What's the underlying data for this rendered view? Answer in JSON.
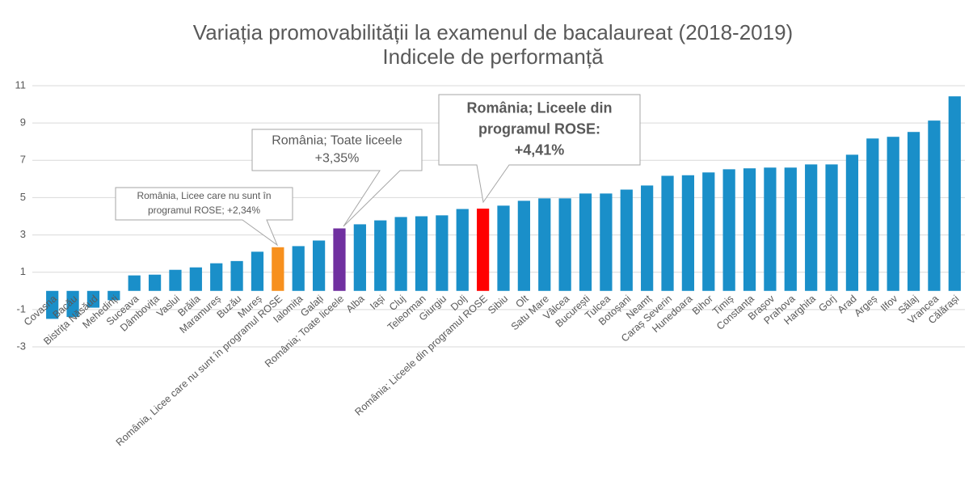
{
  "chart_data": {
    "type": "bar",
    "title": "Variația promovabilității la examenul de bacalaureat (2018-2019)",
    "subtitle": "Indicele de performanță",
    "categories": [
      "Covasna",
      "Bacău",
      "Bistrița Năsăud",
      "Mehedinți",
      "Suceava",
      "Dâmbovița",
      "Vaslui",
      "Brăila",
      "Maramureș",
      "Buzău",
      "Mureș",
      "România, Licee care nu sunt în programul ROSE",
      "Ialomița",
      "Galați",
      "România; Toate liceele",
      "Alba",
      "Iași",
      "Cluj",
      "Teleorman",
      "Giurgiu",
      "Dolj",
      "România; Liceele din programul ROSE",
      "Sibiu",
      "Olt",
      "Satu Mare",
      "Vâlcea",
      "București",
      "Tulcea",
      "Botoșani",
      "Neamț",
      "Caraș Severin",
      "Hunedoara",
      "Bihor",
      "Timiș",
      "Constanța",
      "Brașov",
      "Prahova",
      "Harghita",
      "Gorj",
      "Arad",
      "Argeș",
      "Ilfov",
      "Sălaj",
      "Vrancea",
      "Călărași"
    ],
    "values": [
      -1.5,
      -1.4,
      -0.9,
      -0.5,
      0.83,
      0.87,
      1.13,
      1.26,
      1.48,
      1.6,
      2.1,
      2.34,
      2.4,
      2.7,
      3.35,
      3.57,
      3.78,
      3.96,
      4.0,
      4.05,
      4.39,
      4.41,
      4.57,
      4.83,
      4.96,
      4.96,
      5.22,
      5.22,
      5.43,
      5.65,
      6.17,
      6.2,
      6.35,
      6.52,
      6.57,
      6.61,
      6.61,
      6.78,
      6.78,
      7.3,
      8.17,
      8.26,
      8.52,
      9.13,
      10.43
    ],
    "colors": [
      "#1a8fc9",
      "#1a8fc9",
      "#1a8fc9",
      "#1a8fc9",
      "#1a8fc9",
      "#1a8fc9",
      "#1a8fc9",
      "#1a8fc9",
      "#1a8fc9",
      "#1a8fc9",
      "#1a8fc9",
      "#f7901e",
      "#1a8fc9",
      "#1a8fc9",
      "#7030a0",
      "#1a8fc9",
      "#1a8fc9",
      "#1a8fc9",
      "#1a8fc9",
      "#1a8fc9",
      "#1a8fc9",
      "#ff0000",
      "#1a8fc9",
      "#1a8fc9",
      "#1a8fc9",
      "#1a8fc9",
      "#1a8fc9",
      "#1a8fc9",
      "#1a8fc9",
      "#1a8fc9",
      "#1a8fc9",
      "#1a8fc9",
      "#1a8fc9",
      "#1a8fc9",
      "#1a8fc9",
      "#1a8fc9",
      "#1a8fc9",
      "#1a8fc9",
      "#1a8fc9",
      "#1a8fc9",
      "#1a8fc9",
      "#1a8fc9",
      "#1a8fc9",
      "#1a8fc9",
      "#1a8fc9"
    ],
    "ylim": [
      -3,
      11
    ],
    "yticks": [
      -3,
      -1,
      1,
      3,
      5,
      7,
      9,
      11
    ],
    "grid": true,
    "annotations": [
      {
        "lines": [
          "România, Licee care nu sunt în",
          "programul ROSE; +2,34%"
        ]
      },
      {
        "lines": [
          "România; Toate liceele",
          "+3,35%"
        ]
      },
      {
        "lines": [
          "România; Liceele din",
          "programul ROSE:",
          "+4,41%"
        ]
      }
    ]
  }
}
